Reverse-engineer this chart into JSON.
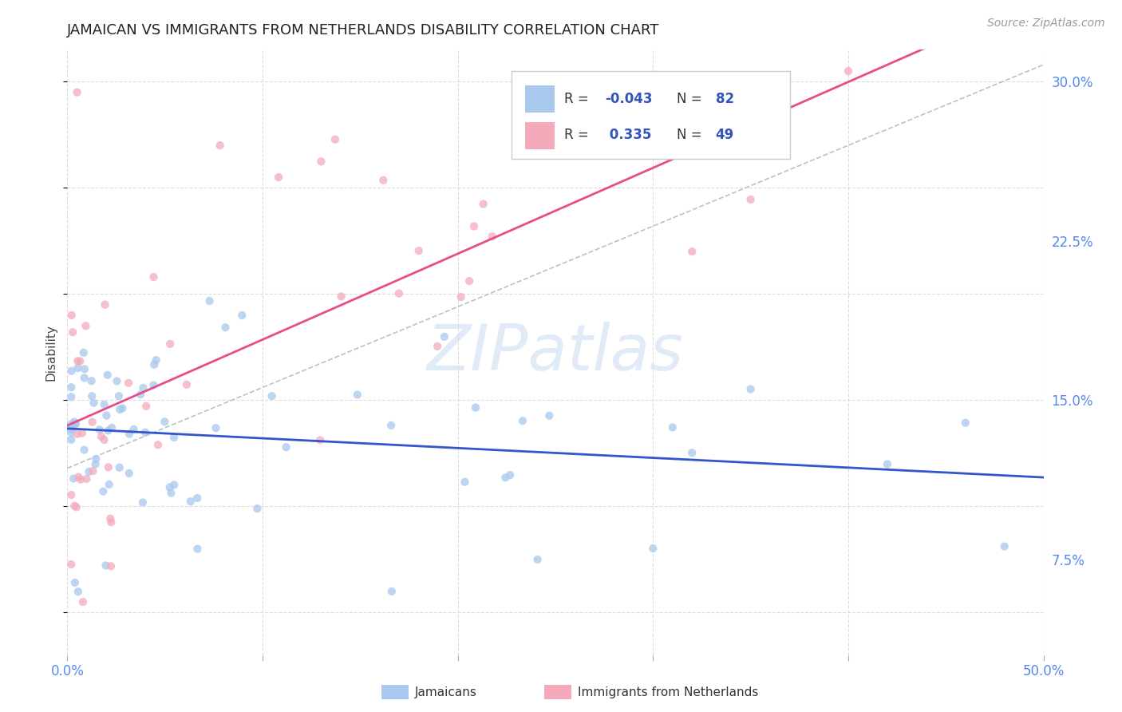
{
  "title": "JAMAICAN VS IMMIGRANTS FROM NETHERLANDS DISABILITY CORRELATION CHART",
  "source": "Source: ZipAtlas.com",
  "ylabel": "Disability",
  "watermark": "ZIPatlas",
  "xlim": [
    0.0,
    0.5
  ],
  "ylim": [
    0.03,
    0.315
  ],
  "xtick_positions": [
    0.0,
    0.1,
    0.2,
    0.3,
    0.4,
    0.5
  ],
  "xticklabels": [
    "0.0%",
    "",
    "",
    "",
    "",
    "50.0%"
  ],
  "ytick_right_positions": [
    0.075,
    0.15,
    0.225,
    0.3
  ],
  "ytick_right_labels": [
    "7.5%",
    "15.0%",
    "22.5%",
    "30.0%"
  ],
  "blue_r": "-0.043",
  "blue_n": "82",
  "pink_r": "0.335",
  "pink_n": "49",
  "blue_color": "#A8C8EE",
  "pink_color": "#F4AABB",
  "blue_line_color": "#3355CC",
  "pink_line_color": "#E84D8A",
  "dashed_line_color": "#C0C0C0",
  "background_color": "#FFFFFF",
  "grid_color": "#DDDDDD",
  "title_color": "#222222",
  "source_color": "#999999",
  "ylabel_color": "#444444",
  "tick_label_color": "#5588EE",
  "legend_text_color": "#333333",
  "legend_value_color": "#3355BB"
}
